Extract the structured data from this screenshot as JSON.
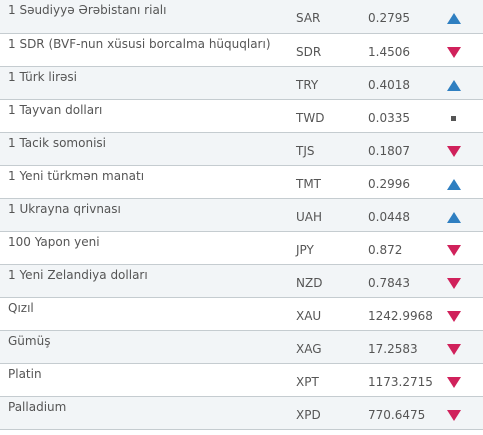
{
  "rows": [
    {
      "name": "1 Səudiyyə Ərəbistanı rialı",
      "code": "SAR",
      "value": "0.2795",
      "trend": "up",
      "trend_icon": "triangle-up-icon"
    },
    {
      "name": "1 SDR (BVF-nun xüsusi borcalma hüquqları)",
      "code": "SDR",
      "value": "1.4506",
      "trend": "down",
      "trend_icon": "triangle-down-icon"
    },
    {
      "name": "1 Türk lirəsi",
      "code": "TRY",
      "value": "0.4018",
      "trend": "up",
      "trend_icon": "triangle-up-icon"
    },
    {
      "name": "1 Tayvan dolları",
      "code": "TWD",
      "value": "0.0335",
      "trend": "flat",
      "trend_icon": "square-icon"
    },
    {
      "name": "1 Tacik somonisi",
      "code": "TJS",
      "value": "0.1807",
      "trend": "down",
      "trend_icon": "triangle-down-icon"
    },
    {
      "name": "1 Yeni türkmən manatı",
      "code": "TMT",
      "value": "0.2996",
      "trend": "up",
      "trend_icon": "triangle-up-icon"
    },
    {
      "name": "1 Ukrayna qrivnası",
      "code": "UAH",
      "value": "0.0448",
      "trend": "up",
      "trend_icon": "triangle-up-icon"
    },
    {
      "name": "100 Yapon yeni",
      "code": "JPY",
      "value": "0.872",
      "trend": "down",
      "trend_icon": "triangle-down-icon"
    },
    {
      "name": "1 Yeni Zelandiya dolları",
      "code": "NZD",
      "value": "0.7843",
      "trend": "down",
      "trend_icon": "triangle-down-icon"
    },
    {
      "name": "Qızıl",
      "code": "XAU",
      "value": "1242.9968",
      "trend": "down",
      "trend_icon": "triangle-down-icon"
    },
    {
      "name": "Gümüş",
      "code": "XAG",
      "value": "17.2583",
      "trend": "down",
      "trend_icon": "triangle-down-icon"
    },
    {
      "name": "Platin",
      "code": "XPT",
      "value": "1173.2715",
      "trend": "down",
      "trend_icon": "triangle-down-icon"
    },
    {
      "name": "Palladium",
      "code": "XPD",
      "value": "770.6475",
      "trend": "down",
      "trend_icon": "triangle-down-icon"
    }
  ],
  "colors": {
    "up": "#2f7fc1",
    "down": "#d0215b",
    "flat": "#555555",
    "row_alt": "#f2f5f7",
    "border": "#c5ccd0",
    "text": "#555555"
  }
}
